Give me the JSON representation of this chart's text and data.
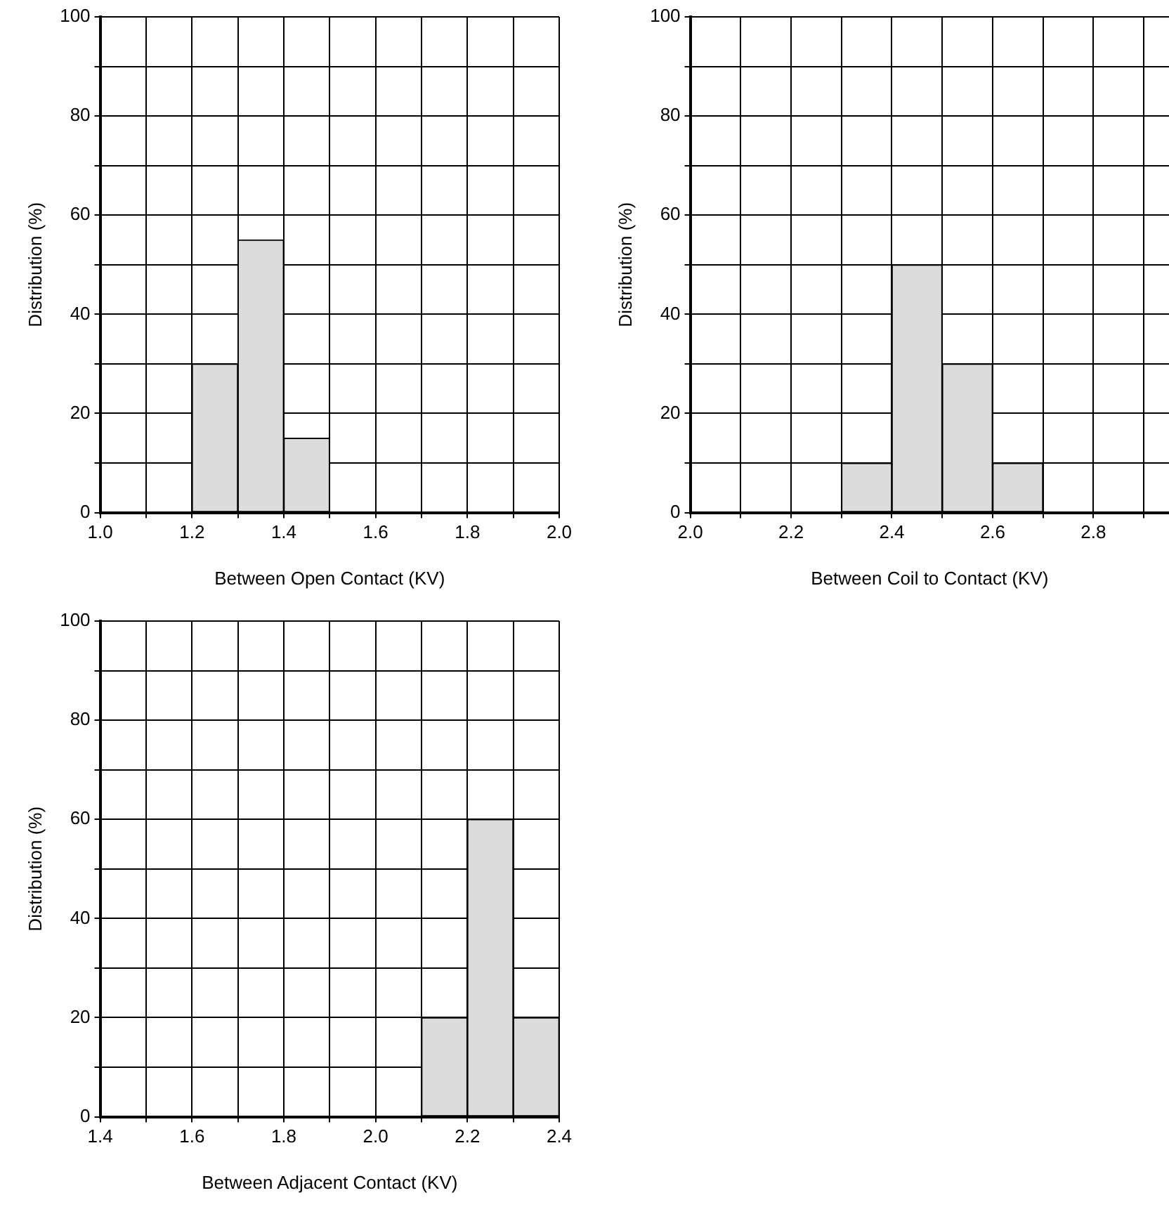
{
  "chart_data": [
    {
      "type": "histogram",
      "bins": [
        1.2,
        1.3,
        1.4,
        1.5
      ],
      "values": [
        30,
        55,
        15
      ],
      "color": "#dcdcdc",
      "xlabel": "Between Open Contact (KV)",
      "ylabel": "Distribution (%)",
      "xlim": [
        1.0,
        2.0
      ],
      "xticks": [
        {
          "value": 1.0,
          "label": "1.0"
        },
        {
          "value": 1.1,
          "label": null
        },
        {
          "value": 1.2,
          "label": "1.2"
        },
        {
          "value": 1.3,
          "label": null
        },
        {
          "value": 1.4,
          "label": "1.4"
        },
        {
          "value": 1.5,
          "label": null
        },
        {
          "value": 1.6,
          "label": "1.6"
        },
        {
          "value": 1.7,
          "label": null
        },
        {
          "value": 1.8,
          "label": "1.8"
        },
        {
          "value": 1.9,
          "label": null
        },
        {
          "value": 2.0,
          "label": "2.0"
        }
      ],
      "ylim": [
        0,
        100
      ],
      "yticks": [
        0,
        {
          "value": 10,
          "label": null
        },
        20,
        {
          "value": 30,
          "label": null
        },
        40,
        {
          "value": 50,
          "label": null
        },
        60,
        {
          "value": 70,
          "label": null
        },
        80,
        {
          "value": 90,
          "label": null
        },
        100
      ],
      "grid": true
    },
    {
      "type": "histogram",
      "bins": [
        2.3,
        2.4,
        2.5,
        2.6,
        2.7
      ],
      "values": [
        10,
        50,
        30,
        10
      ],
      "color": "#dcdcdc",
      "xlabel": "Between Coil to Contact (KV)",
      "ylabel": "Distribution (%)",
      "xlim": [
        2.0,
        2.95
      ],
      "xticks": [
        {
          "value": 2.0,
          "label": "2.0"
        },
        {
          "value": 2.1,
          "label": null
        },
        {
          "value": 2.2,
          "label": "2.2"
        },
        {
          "value": 2.3,
          "label": null
        },
        {
          "value": 2.4,
          "label": "2.4"
        },
        {
          "value": 2.5,
          "label": null
        },
        {
          "value": 2.6,
          "label": "2.6"
        },
        {
          "value": 2.7,
          "label": null
        },
        {
          "value": 2.8,
          "label": "2.8"
        },
        {
          "value": 2.9,
          "label": null
        }
      ],
      "ylim": [
        0,
        100
      ],
      "yticks": [
        0,
        {
          "value": 10,
          "label": null
        },
        20,
        {
          "value": 30,
          "label": null
        },
        40,
        {
          "value": 50,
          "label": null
        },
        60,
        {
          "value": 70,
          "label": null
        },
        80,
        {
          "value": 90,
          "label": null
        },
        100
      ],
      "grid": true
    },
    {
      "type": "histogram",
      "bins": [
        2.1,
        2.2,
        2.3,
        2.4
      ],
      "values": [
        20,
        60,
        20
      ],
      "color": "#dcdcdc",
      "xlabel": "Between Adjacent Contact (KV)",
      "ylabel": "Distribution (%)",
      "xlim": [
        1.4,
        2.4
      ],
      "xticks": [
        {
          "value": 1.4,
          "label": "1.4"
        },
        {
          "value": 1.5,
          "label": null
        },
        {
          "value": 1.6,
          "label": "1.6"
        },
        {
          "value": 1.7,
          "label": null
        },
        {
          "value": 1.8,
          "label": "1.8"
        },
        {
          "value": 1.9,
          "label": null
        },
        {
          "value": 2.0,
          "label": "2.0"
        },
        {
          "value": 2.1,
          "label": null
        },
        {
          "value": 2.2,
          "label": "2.2"
        },
        {
          "value": 2.3,
          "label": null
        },
        {
          "value": 2.4,
          "label": "2.4"
        }
      ],
      "ylim": [
        0,
        100
      ],
      "yticks": [
        0,
        {
          "value": 10,
          "label": null
        },
        20,
        {
          "value": 30,
          "label": null
        },
        40,
        {
          "value": 50,
          "label": null
        },
        60,
        {
          "value": 70,
          "label": null
        },
        80,
        {
          "value": 90,
          "label": null
        },
        100
      ],
      "grid": true
    }
  ]
}
